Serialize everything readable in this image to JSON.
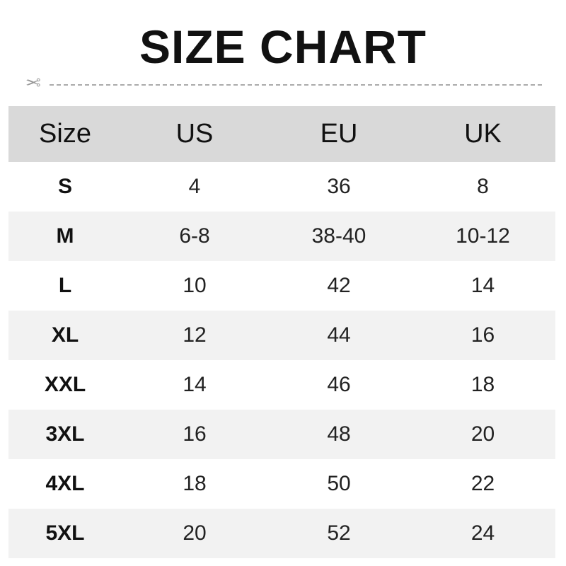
{
  "title": "SIZE CHART",
  "icons": {
    "cut_line": "scissors-icon"
  },
  "headers": [
    "Size",
    "US",
    "EU",
    "UK"
  ],
  "rows": [
    [
      "S",
      "4",
      "36",
      "8"
    ],
    [
      "M",
      "6-8",
      "38-40",
      "10-12"
    ],
    [
      "L",
      "10",
      "42",
      "14"
    ],
    [
      "XL",
      "12",
      "44",
      "16"
    ],
    [
      "XXL",
      "14",
      "46",
      "18"
    ],
    [
      "3XL",
      "16",
      "48",
      "20"
    ],
    [
      "4XL",
      "18",
      "50",
      "22"
    ],
    [
      "5XL",
      "20",
      "52",
      "24"
    ]
  ],
  "colors": {
    "header_bg": "#d9d9d9",
    "alt_row_bg": "#f2f2f2"
  }
}
